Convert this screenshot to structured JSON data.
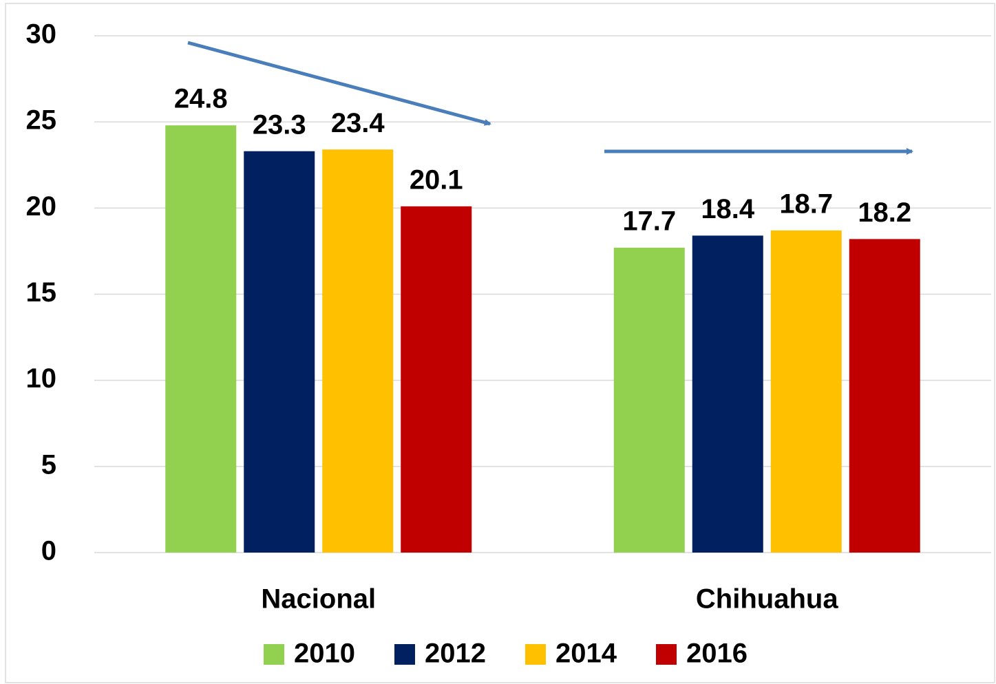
{
  "chart_data": {
    "type": "bar",
    "categories": [
      "Nacional",
      "Chihuahua"
    ],
    "series": [
      {
        "name": "2010",
        "color": "#92d050",
        "values": [
          24.8,
          17.7
        ]
      },
      {
        "name": "2012",
        "color": "#002060",
        "values": [
          23.3,
          18.4
        ]
      },
      {
        "name": "2014",
        "color": "#ffc000",
        "values": [
          23.4,
          18.7
        ]
      },
      {
        "name": "2016",
        "color": "#c00000",
        "values": [
          20.1,
          18.2
        ]
      }
    ],
    "ylim": [
      0,
      30
    ],
    "yticks": [
      0,
      5,
      10,
      15,
      20,
      25,
      30
    ],
    "grid": true,
    "legend": "bottom"
  }
}
